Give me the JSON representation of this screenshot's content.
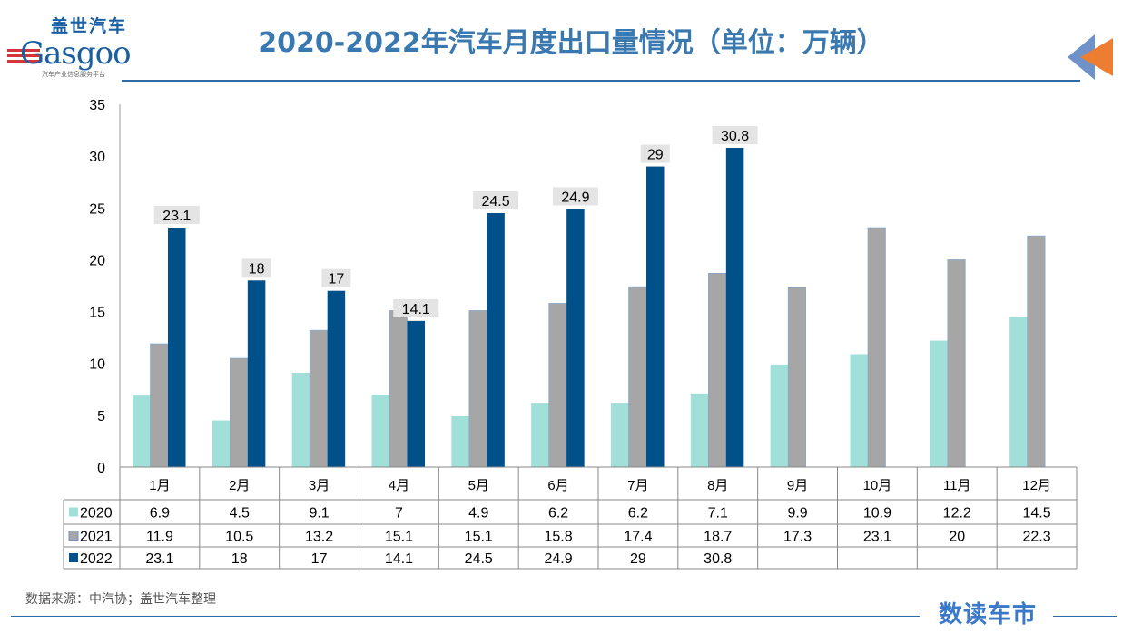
{
  "title": "2020-2022年汽车月度出口量情况（单位：万辆）",
  "logo": {
    "cn": "盖世汽车",
    "en": "Gasgoo",
    "sub": "汽车产业信息服务平台"
  },
  "source": "数据来源：中汽协；盖世汽车整理",
  "brand": "数读车市",
  "colors": {
    "2020": "#a0e0d8",
    "2021": "#a6a6a6",
    "2022": "#00508a",
    "title": "#3a78b0"
  },
  "chart_data": {
    "type": "bar",
    "title": "2020-2022年汽车月度出口量情况（单位：万辆）",
    "categories": [
      "1月",
      "2月",
      "3月",
      "4月",
      "5月",
      "6月",
      "7月",
      "8月",
      "9月",
      "10月",
      "11月",
      "12月"
    ],
    "series": [
      {
        "name": "2020",
        "values": [
          6.9,
          4.5,
          9.1,
          7,
          4.9,
          6.2,
          6.2,
          7.1,
          9.9,
          10.9,
          12.2,
          14.5
        ]
      },
      {
        "name": "2021",
        "values": [
          11.9,
          10.5,
          13.2,
          15.1,
          15.1,
          15.8,
          17.4,
          18.7,
          17.3,
          23.1,
          20,
          22.3
        ]
      },
      {
        "name": "2022",
        "values": [
          23.1,
          18,
          17,
          14.1,
          24.5,
          24.9,
          29,
          30.8,
          null,
          null,
          null,
          null
        ]
      }
    ],
    "data_labels_series": "2022",
    "ylim": [
      0,
      35
    ],
    "yticks": [
      0,
      5,
      10,
      15,
      20,
      25,
      30,
      35
    ],
    "grid": false,
    "legend": "data-table-bottom",
    "data_table": true
  }
}
